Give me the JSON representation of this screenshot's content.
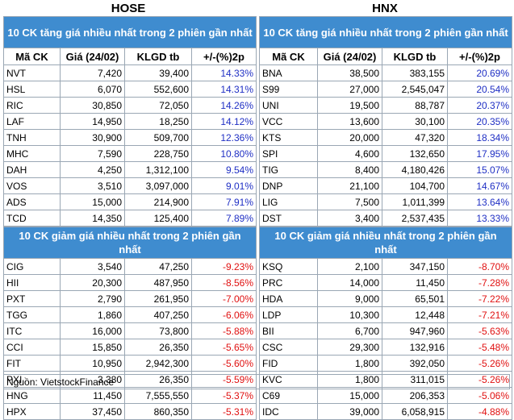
{
  "exchanges": {
    "hose": "HOSE",
    "hnx": "HNX"
  },
  "titles": {
    "gainers": "10 CK tăng giá nhiều nhất trong 2 phiên gần nhất",
    "losers": "10 CK giảm giá nhiều nhất trong 2 phiên gần nhất"
  },
  "columns": [
    "Mã CK",
    "Giá (24/02)",
    "KLGD tb",
    "+/-(%)2p"
  ],
  "hose": {
    "gainers": [
      [
        "NVT",
        "7,420",
        "39,400",
        "14.33%"
      ],
      [
        "HSL",
        "6,070",
        "552,600",
        "14.31%"
      ],
      [
        "RIC",
        "30,850",
        "72,050",
        "14.26%"
      ],
      [
        "LAF",
        "14,950",
        "18,250",
        "14.12%"
      ],
      [
        "TNH",
        "30,900",
        "509,700",
        "12.36%"
      ],
      [
        "MHC",
        "7,590",
        "228,750",
        "10.80%"
      ],
      [
        "DAH",
        "4,250",
        "1,312,100",
        "9.54%"
      ],
      [
        "VOS",
        "3,510",
        "3,097,000",
        "9.01%"
      ],
      [
        "ADS",
        "15,000",
        "214,900",
        "7.91%"
      ],
      [
        "TCD",
        "14,350",
        "125,400",
        "7.89%"
      ]
    ],
    "losers": [
      [
        "CIG",
        "3,540",
        "47,250",
        "-9.23%"
      ],
      [
        "HII",
        "20,300",
        "487,950",
        "-8.56%"
      ],
      [
        "PXT",
        "2,790",
        "261,950",
        "-7.00%"
      ],
      [
        "TGG",
        "1,860",
        "407,250",
        "-6.06%"
      ],
      [
        "ITC",
        "16,000",
        "73,800",
        "-5.88%"
      ],
      [
        "CCI",
        "15,850",
        "26,350",
        "-5.65%"
      ],
      [
        "FIT",
        "10,950",
        "2,942,300",
        "-5.60%"
      ],
      [
        "PXI",
        "3,380",
        "26,350",
        "-5.59%"
      ],
      [
        "HNG",
        "11,450",
        "7,555,550",
        "-5.37%"
      ],
      [
        "HPX",
        "37,450",
        "860,350",
        "-5.31%"
      ]
    ]
  },
  "hnx": {
    "gainers": [
      [
        "BNA",
        "38,500",
        "383,155",
        "20.69%"
      ],
      [
        "S99",
        "27,000",
        "2,545,047",
        "20.54%"
      ],
      [
        "UNI",
        "19,500",
        "88,787",
        "20.37%"
      ],
      [
        "VCC",
        "13,600",
        "30,100",
        "20.35%"
      ],
      [
        "KTS",
        "20,000",
        "47,320",
        "18.34%"
      ],
      [
        "SPI",
        "4,600",
        "132,650",
        "17.95%"
      ],
      [
        "TIG",
        "8,400",
        "4,180,426",
        "15.07%"
      ],
      [
        "DNP",
        "21,100",
        "104,700",
        "14.67%"
      ],
      [
        "LIG",
        "7,500",
        "1,011,399",
        "13.64%"
      ],
      [
        "DST",
        "3,400",
        "2,537,435",
        "13.33%"
      ]
    ],
    "losers": [
      [
        "KSQ",
        "2,100",
        "347,150",
        "-8.70%"
      ],
      [
        "PRC",
        "14,000",
        "11,450",
        "-7.28%"
      ],
      [
        "HDA",
        "9,000",
        "65,501",
        "-7.22%"
      ],
      [
        "LDP",
        "10,300",
        "12,448",
        "-7.21%"
      ],
      [
        "BII",
        "6,700",
        "947,960",
        "-5.63%"
      ],
      [
        "CSC",
        "29,300",
        "132,916",
        "-5.48%"
      ],
      [
        "FID",
        "1,800",
        "392,050",
        "-5.26%"
      ],
      [
        "KVC",
        "1,800",
        "311,015",
        "-5.26%"
      ],
      [
        "C69",
        "15,000",
        "206,353",
        "-5.06%"
      ],
      [
        "IDC",
        "39,000",
        "6,058,915",
        "-4.88%"
      ]
    ]
  },
  "source": "Nguồn: VietstockFinance",
  "colors": {
    "header_bg": "#3f8ccf",
    "up": "#1f2fc4",
    "down": "#e01010"
  }
}
